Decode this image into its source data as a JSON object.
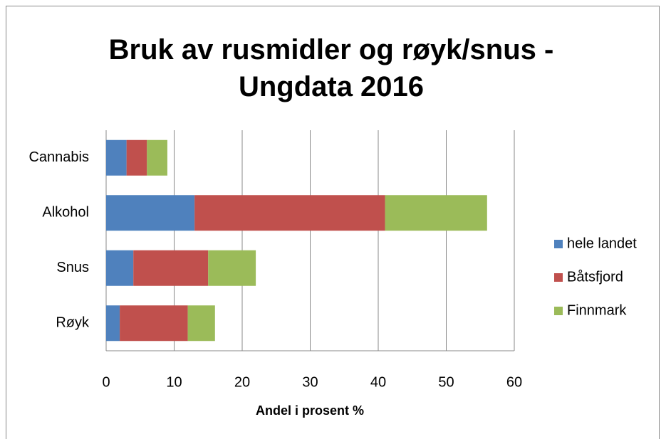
{
  "chart_data": {
    "type": "stacked_barh",
    "title": "Bruk av rusmidler og røyk/snus - Ungdata 2016",
    "xlabel": "Andel i prosent %",
    "categories": [
      "Cannabis",
      "Alkohol",
      "Snus",
      "Røyk"
    ],
    "series": [
      {
        "name": "hele landet",
        "color": "#4f81bd",
        "values": [
          3,
          13,
          4,
          2
        ]
      },
      {
        "name": "Båtsfjord",
        "color": "#c0504d",
        "values": [
          3,
          28,
          11,
          10
        ]
      },
      {
        "name": "Finnmark",
        "color": "#9bbb59",
        "values": [
          3,
          15,
          7,
          4
        ]
      }
    ],
    "xlim": [
      0,
      60
    ],
    "xticks": [
      0,
      10,
      20,
      30,
      40,
      50,
      60
    ],
    "grid": true,
    "legend": "right"
  }
}
